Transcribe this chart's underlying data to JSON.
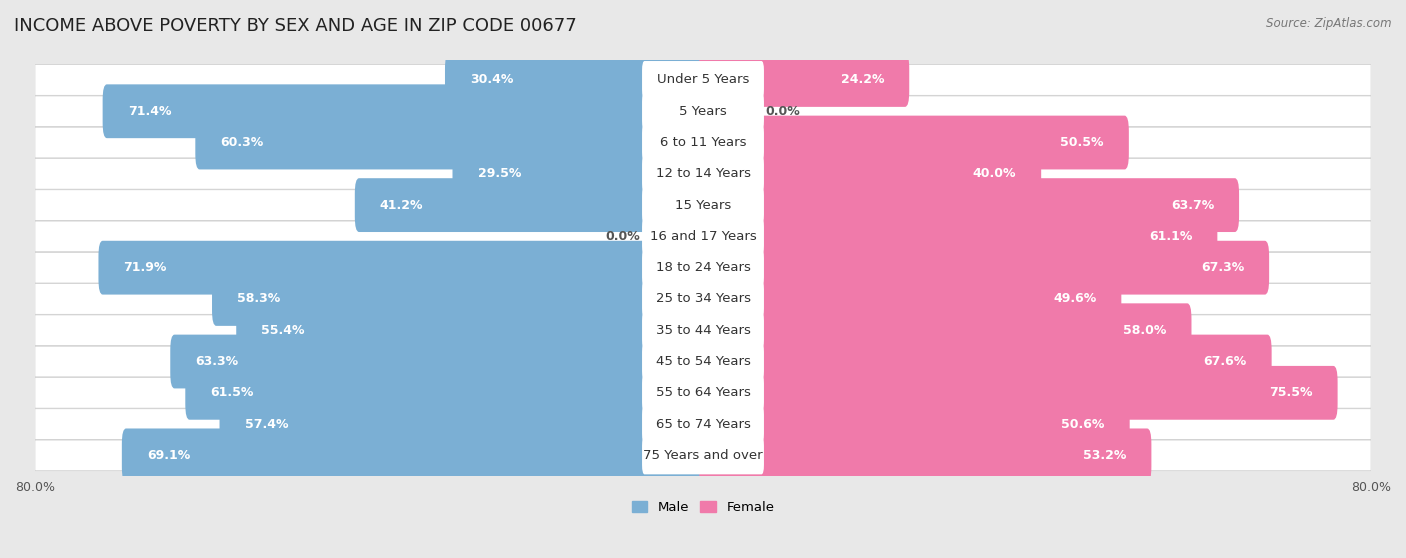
{
  "title": "INCOME ABOVE POVERTY BY SEX AND AGE IN ZIP CODE 00677",
  "source": "Source: ZipAtlas.com",
  "categories": [
    "Under 5 Years",
    "5 Years",
    "6 to 11 Years",
    "12 to 14 Years",
    "15 Years",
    "16 and 17 Years",
    "18 to 24 Years",
    "25 to 34 Years",
    "35 to 44 Years",
    "45 to 54 Years",
    "55 to 64 Years",
    "65 to 74 Years",
    "75 Years and over"
  ],
  "male": [
    30.4,
    71.4,
    60.3,
    29.5,
    41.2,
    0.0,
    71.9,
    58.3,
    55.4,
    63.3,
    61.5,
    57.4,
    69.1
  ],
  "female": [
    24.2,
    0.0,
    50.5,
    40.0,
    63.7,
    61.1,
    67.3,
    49.6,
    58.0,
    67.6,
    75.5,
    50.6,
    53.2
  ],
  "male_color": "#7bafd4",
  "male_color_light": "#b8d4ea",
  "female_color": "#f07aaa",
  "female_color_light": "#f8b8d0",
  "xlim": 80.0,
  "bg_color": "#e8e8e8",
  "row_bg_color": "#ffffff",
  "title_fontsize": 13,
  "label_fontsize": 9,
  "category_fontsize": 9.5,
  "source_fontsize": 8.5
}
